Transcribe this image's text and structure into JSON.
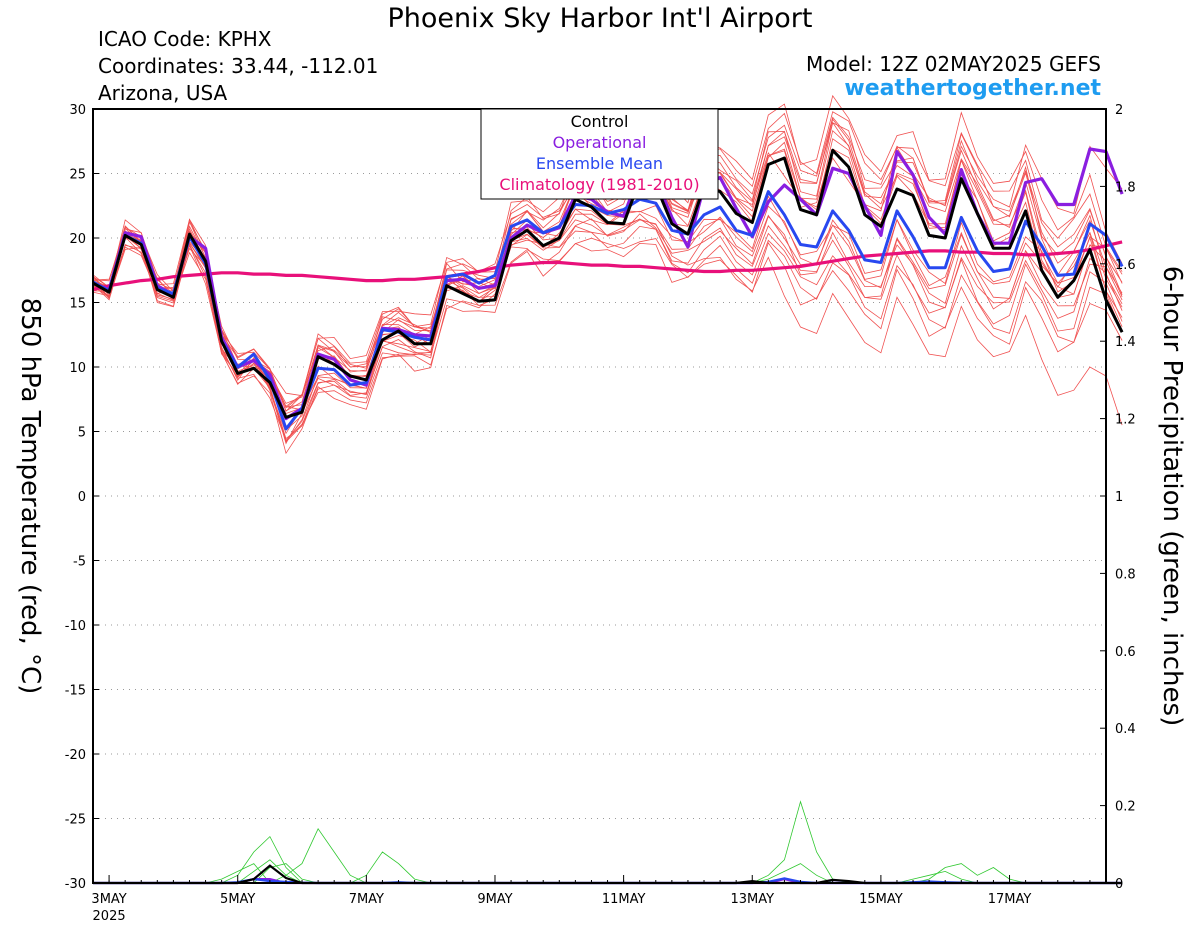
{
  "header": {
    "title": "Phoenix Sky Harbor Int'l Airport",
    "icao": "ICAO Code: KPHX",
    "coordinates": "Coordinates: 33.44, -112.01",
    "region": "Arizona, USA",
    "model": "Model: 12Z 02MAY2025 GEFS",
    "site": "weathertogether.net"
  },
  "colors": {
    "member": "#f05050",
    "control": "#000000",
    "operational": "#8a1ee0",
    "mean": "#2848f0",
    "climatology": "#e8107a",
    "precip": "#30c830",
    "site": "#1e9cf0"
  },
  "chart_data": {
    "type": "line",
    "title": "Phoenix Sky Harbor Int'l Airport",
    "xlabel": "",
    "ylabel": "850 hPa Temperature (red, °C)",
    "ylabel_right": "6-hour Precipitation (green, inches)",
    "ylim": [
      -30,
      30
    ],
    "ylim_right": [
      0,
      2
    ],
    "yticks": [
      30,
      25,
      20,
      15,
      10,
      5,
      0,
      -5,
      -10,
      -15,
      -20,
      -25,
      -30
    ],
    "yticks_right": [
      "2",
      "1.8",
      "1.6",
      "1.4",
      "1.2",
      "1",
      "0.8",
      "0.6",
      "0.4",
      "0.2",
      "0"
    ],
    "xlim": [
      "2025-05-02T18",
      "2025-05-18T12"
    ],
    "x_step": "6 hours",
    "xticks": [
      {
        "label": "3MAY",
        "sub": "2025",
        "day": 3
      },
      {
        "label": "5MAY",
        "day": 5
      },
      {
        "label": "7MAY",
        "day": 7
      },
      {
        "label": "9MAY",
        "day": 9
      },
      {
        "label": "11MAY",
        "day": 11
      },
      {
        "label": "13MAY",
        "day": 13
      },
      {
        "label": "15MAY",
        "day": 15
      },
      {
        "label": "17MAY",
        "day": 17
      }
    ],
    "grid": true,
    "legend": {
      "position": "top-center",
      "items": [
        {
          "label": "Control",
          "color": "#000000"
        },
        {
          "label": "Operational",
          "color": "#8a1ee0"
        },
        {
          "label": "Ensemble Mean",
          "color": "#2848f0"
        },
        {
          "label": "Climatology (1981-2010)",
          "color": "#e8107a"
        }
      ]
    },
    "series": [
      {
        "name": "Control",
        "values": [
          16.5,
          15.8,
          20.2,
          19.5,
          16.0,
          15.4,
          20.3,
          18.2,
          12.0,
          9.5,
          9.9,
          8.8,
          6.1,
          6.5,
          10.8,
          10.2,
          9.3,
          9.0,
          12.1,
          12.8,
          11.8,
          11.8,
          16.3,
          15.7,
          15.1,
          15.2,
          19.8,
          20.6,
          19.4,
          20.0,
          23.0,
          22.4,
          21.2,
          21.1,
          24.5,
          24.1,
          21.1,
          20.3,
          24.0,
          23.6,
          21.9,
          21.2,
          25.7,
          26.2,
          22.2,
          21.8,
          26.8,
          25.5,
          21.8,
          20.9,
          23.8,
          23.3,
          20.2,
          20.0,
          24.6,
          21.9,
          19.2,
          19.2,
          22.1,
          17.5,
          15.4,
          16.7,
          19.1,
          15.2,
          12.7
        ]
      },
      {
        "name": "Operational",
        "values": [
          16.5,
          16.0,
          20.4,
          20.1,
          16.3,
          15.6,
          20.1,
          19.2,
          12.3,
          10.0,
          10.5,
          9.4,
          6.0,
          6.8,
          11.0,
          10.6,
          9.0,
          8.6,
          13.0,
          12.9,
          12.5,
          12.4,
          16.7,
          16.8,
          16.1,
          16.3,
          20.0,
          21.0,
          20.4,
          20.8,
          23.3,
          23.0,
          22.0,
          21.7,
          25.0,
          24.6,
          21.6,
          19.3,
          24.0,
          24.7,
          22.3,
          20.1,
          22.8,
          24.1,
          23.0,
          21.8,
          25.4,
          25.0,
          22.5,
          20.2,
          26.7,
          24.9,
          21.6,
          20.3,
          25.3,
          21.9,
          19.6,
          19.6,
          24.3,
          24.6,
          22.6,
          22.6,
          26.9,
          26.7,
          23.4
        ]
      },
      {
        "name": "Ensemble Mean",
        "values": [
          16.6,
          15.9,
          20.2,
          19.6,
          16.1,
          15.7,
          20.1,
          18.0,
          12.0,
          10.0,
          11.0,
          9.0,
          5.2,
          6.8,
          9.9,
          9.8,
          8.6,
          8.8,
          12.9,
          12.7,
          12.3,
          12.1,
          17.0,
          17.2,
          16.5,
          17.1,
          20.9,
          21.4,
          20.4,
          20.9,
          22.6,
          22.5,
          21.9,
          22.2,
          23.0,
          22.7,
          20.6,
          20.3,
          21.8,
          22.4,
          20.6,
          20.2,
          23.6,
          21.8,
          19.5,
          19.3,
          22.1,
          20.6,
          18.3,
          18.1,
          22.1,
          20.1,
          17.7,
          17.7,
          21.6,
          19.0,
          17.4,
          17.6,
          21.3,
          19.4,
          17.1,
          17.2,
          21.1,
          20.2,
          17.8
        ]
      },
      {
        "name": "Climatology (1981-2010)",
        "values": [
          16.0,
          16.3,
          16.5,
          16.7,
          16.8,
          17.0,
          17.1,
          17.2,
          17.3,
          17.3,
          17.2,
          17.2,
          17.1,
          17.1,
          17.0,
          16.9,
          16.8,
          16.7,
          16.7,
          16.8,
          16.8,
          16.9,
          17.0,
          17.2,
          17.4,
          17.7,
          17.9,
          18.0,
          18.1,
          18.1,
          18.0,
          17.9,
          17.9,
          17.8,
          17.8,
          17.7,
          17.6,
          17.5,
          17.4,
          17.4,
          17.5,
          17.5,
          17.6,
          17.7,
          17.8,
          18.0,
          18.2,
          18.4,
          18.6,
          18.7,
          18.8,
          18.9,
          19.0,
          19.0,
          18.9,
          18.9,
          18.8,
          18.8,
          18.7,
          18.7,
          18.8,
          18.9,
          19.1,
          19.4,
          19.7
        ]
      }
    ],
    "ensemble_members": [
      [
        17.0,
        16.2,
        21.4,
        20.4,
        16.5,
        16.0,
        20.9,
        18.5,
        12.9,
        10.8,
        11.4,
        9.9,
        6.6,
        7.3,
        11.7,
        11.3,
        10.2,
        9.9,
        13.9,
        13.6,
        13.1,
        13.0,
        17.6,
        18.0,
        17.4,
        18.0,
        21.9,
        22.6,
        21.6,
        22.1,
        24.0,
        24.1,
        23.5,
        23.7,
        25.2,
        24.9,
        22.7,
        22.1,
        24.4,
        25.1,
        23.1,
        22.6,
        26.6,
        24.8,
        23.0,
        22.4,
        26.2,
        24.4,
        22.6,
        22.1,
        27.0,
        25.0,
        23.1,
        22.5,
        27.1,
        24.8,
        23.0,
        22.4,
        27.2,
        24.6,
        22.3,
        21.9,
        27.1,
        25.4,
        23.8
      ],
      [
        16.4,
        15.5,
        19.5,
        18.9,
        15.5,
        15.1,
        19.4,
        17.3,
        11.2,
        9.2,
        10.3,
        8.3,
        4.3,
        5.8,
        8.8,
        8.9,
        7.8,
        8.0,
        12.0,
        11.8,
        11.5,
        11.2,
        15.9,
        16.3,
        15.7,
        16.3,
        19.8,
        20.3,
        19.3,
        19.8,
        21.4,
        21.0,
        20.2,
        20.6,
        21.4,
        21.1,
        18.6,
        17.9,
        18.4,
        18.5,
        16.8,
        15.9,
        18.5,
        15.5,
        13.1,
        12.6,
        15.7,
        13.8,
        11.9,
        11.1,
        15.4,
        13.3,
        11.0,
        10.8,
        14.7,
        12.1,
        10.8,
        11.2,
        14.0,
        10.6,
        7.8,
        8.2,
        10.0,
        9.3,
        5.5
      ]
    ],
    "precip_series": [
      {
        "name": "Operational",
        "color": "#8a1ee0",
        "values": [
          0,
          0,
          0,
          0,
          0,
          0,
          0,
          0,
          0,
          0,
          0.01,
          0.01,
          0,
          0,
          0,
          0,
          0,
          0,
          0,
          0,
          0,
          0,
          0,
          0,
          0,
          0,
          0,
          0,
          0,
          0,
          0,
          0,
          0,
          0,
          0,
          0,
          0,
          0,
          0,
          0,
          0,
          0,
          0,
          0.01,
          0,
          0,
          0,
          0,
          0,
          0,
          0,
          0,
          0,
          0,
          0,
          0,
          0,
          0,
          0,
          0,
          0,
          0,
          0,
          0,
          0
        ]
      },
      {
        "name": "Ensemble Mean",
        "color": "#2848f0",
        "values": [
          0,
          0,
          0,
          0,
          0,
          0,
          0,
          0,
          0,
          0.002,
          0.01,
          0.005,
          0.003,
          0.001,
          0,
          0,
          0,
          0,
          0,
          0.002,
          0,
          0,
          0,
          0,
          0,
          0,
          0,
          0,
          0,
          0,
          0,
          0,
          0,
          0,
          0,
          0,
          0,
          0,
          0,
          0,
          0,
          0,
          0.003,
          0.012,
          0.003,
          0,
          0,
          0,
          0,
          0,
          0,
          0.002,
          0.004,
          0.002,
          0.001,
          0,
          0,
          0,
          0,
          0,
          0,
          0,
          0,
          0,
          0
        ]
      },
      {
        "name": "Control",
        "color": "#000000",
        "values": [
          0,
          0,
          0,
          0,
          0,
          0,
          0,
          0,
          0,
          0,
          0.01,
          0.045,
          0.013,
          0,
          0,
          0,
          0,
          0,
          0,
          0,
          0,
          0,
          0,
          0,
          0,
          0,
          0,
          0,
          0,
          0,
          0,
          0,
          0,
          0,
          0,
          0,
          0,
          0,
          0,
          0,
          0,
          0.005,
          0,
          0,
          0,
          0,
          0.008,
          0.005,
          0,
          0,
          0,
          0,
          0,
          0,
          0,
          0,
          0,
          0,
          0,
          0,
          0,
          0,
          0,
          0,
          0
        ]
      }
    ]
  }
}
